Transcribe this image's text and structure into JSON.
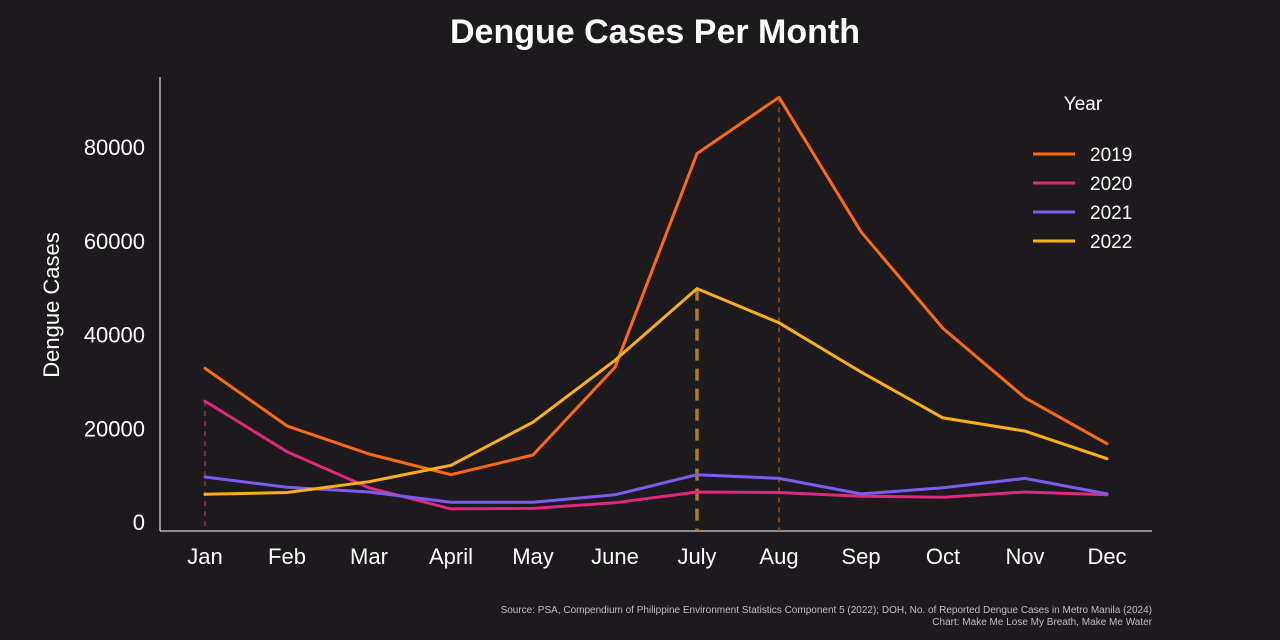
{
  "chart_data": {
    "type": "line",
    "title": "Dengue Cases Per Month",
    "xlabel": "",
    "ylabel": "Dengue Cases",
    "categories": [
      "Jan",
      "Feb",
      "Mar",
      "April",
      "May",
      "June",
      "July",
      "Aug",
      "Sep",
      "Oct",
      "Nov",
      "Dec"
    ],
    "ylim": [
      0,
      93000
    ],
    "yticks": [
      0,
      20000,
      40000,
      60000,
      80000
    ],
    "legend_title": "Year",
    "legend_placement": "top-right",
    "grid": false,
    "series": [
      {
        "name": "2019",
        "color": "#ff6a10",
        "values": [
          32800,
          20500,
          14500,
          10100,
          14300,
          33000,
          78600,
          90600,
          61900,
          41300,
          26500,
          16700
        ]
      },
      {
        "name": "2020",
        "color": "#e0287c",
        "values": [
          25800,
          15000,
          7300,
          2800,
          2900,
          4100,
          6400,
          6300,
          5500,
          5300,
          6400,
          5800
        ]
      },
      {
        "name": "2021",
        "color": "#7a5cf0",
        "values": [
          9600,
          7400,
          6400,
          4200,
          4200,
          5800,
          10100,
          9300,
          6000,
          7300,
          9300,
          6000
        ]
      },
      {
        "name": "2022",
        "color": "#ffaf16",
        "values": [
          5900,
          6300,
          8600,
          12100,
          21300,
          34500,
          49800,
          42500,
          32000,
          22200,
          19400,
          13500
        ]
      }
    ],
    "highlight_lines": [
      {
        "category": "Jan",
        "series": "2020",
        "color": "#a0284f"
      },
      {
        "category": "July",
        "series": "2022",
        "color": "#b07a18",
        "bold": true
      },
      {
        "category": "Aug",
        "series": "2019",
        "color": "#a04a14"
      }
    ]
  },
  "source": {
    "line1": "Source: PSA, Compendium of Philippine Environment Statistics Component 5 (2022); DOH, No. of Reported Dengue Cases in Metro Manila (2024)",
    "line2": "Chart: Make Me Lose My Breath, Make Me Water"
  }
}
